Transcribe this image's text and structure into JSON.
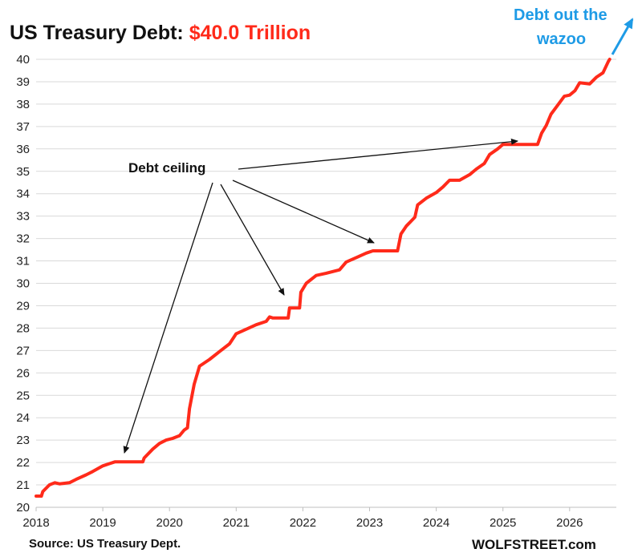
{
  "chart_data": {
    "type": "line",
    "title_prefix": "US Treasury Debt: ",
    "title_value": "$40.0 Trillion",
    "xlabel": "",
    "ylabel": "",
    "xlim": [
      2018.0,
      2026.7
    ],
    "ylim": [
      20,
      40
    ],
    "x_ticks": [
      "2018",
      "2019",
      "2020",
      "2021",
      "2022",
      "2023",
      "2024",
      "2025",
      "2026"
    ],
    "y_ticks": [
      20,
      21,
      22,
      23,
      24,
      25,
      26,
      27,
      28,
      29,
      30,
      31,
      32,
      33,
      34,
      35,
      36,
      37,
      38,
      39,
      40
    ],
    "grid": "horizontal",
    "series": [
      {
        "color": "#ff2a1a",
        "points": [
          [
            2018.0,
            20.5
          ],
          [
            2018.08,
            20.5
          ],
          [
            2018.1,
            20.7
          ],
          [
            2018.2,
            21.0
          ],
          [
            2018.28,
            21.1
          ],
          [
            2018.35,
            21.05
          ],
          [
            2018.5,
            21.1
          ],
          [
            2018.6,
            21.25
          ],
          [
            2018.75,
            21.45
          ],
          [
            2018.85,
            21.6
          ],
          [
            2019.0,
            21.85
          ],
          [
            2019.1,
            21.95
          ],
          [
            2019.18,
            22.03
          ],
          [
            2019.6,
            22.03
          ],
          [
            2019.62,
            22.2
          ],
          [
            2019.75,
            22.6
          ],
          [
            2019.85,
            22.85
          ],
          [
            2019.95,
            23.0
          ],
          [
            2020.05,
            23.08
          ],
          [
            2020.15,
            23.2
          ],
          [
            2020.22,
            23.45
          ],
          [
            2020.27,
            23.55
          ],
          [
            2020.3,
            24.4
          ],
          [
            2020.37,
            25.5
          ],
          [
            2020.45,
            26.3
          ],
          [
            2020.6,
            26.6
          ],
          [
            2020.75,
            26.95
          ],
          [
            2020.9,
            27.3
          ],
          [
            2021.0,
            27.75
          ],
          [
            2021.15,
            27.95
          ],
          [
            2021.3,
            28.15
          ],
          [
            2021.45,
            28.3
          ],
          [
            2021.5,
            28.5
          ],
          [
            2021.55,
            28.45
          ],
          [
            2021.78,
            28.45
          ],
          [
            2021.8,
            28.9
          ],
          [
            2021.95,
            28.9
          ],
          [
            2021.97,
            29.6
          ],
          [
            2022.05,
            30.0
          ],
          [
            2022.2,
            30.35
          ],
          [
            2022.35,
            30.45
          ],
          [
            2022.55,
            30.6
          ],
          [
            2022.65,
            30.95
          ],
          [
            2022.8,
            31.15
          ],
          [
            2022.95,
            31.35
          ],
          [
            2023.05,
            31.45
          ],
          [
            2023.42,
            31.45
          ],
          [
            2023.47,
            32.2
          ],
          [
            2023.55,
            32.55
          ],
          [
            2023.68,
            32.95
          ],
          [
            2023.72,
            33.5
          ],
          [
            2023.85,
            33.8
          ],
          [
            2024.0,
            34.05
          ],
          [
            2024.1,
            34.3
          ],
          [
            2024.2,
            34.6
          ],
          [
            2024.35,
            34.6
          ],
          [
            2024.5,
            34.85
          ],
          [
            2024.6,
            35.1
          ],
          [
            2024.72,
            35.35
          ],
          [
            2024.8,
            35.75
          ],
          [
            2024.92,
            36.0
          ],
          [
            2025.0,
            36.2
          ],
          [
            2025.1,
            36.2
          ],
          [
            2025.52,
            36.2
          ],
          [
            2025.58,
            36.7
          ],
          [
            2025.65,
            37.05
          ],
          [
            2025.72,
            37.55
          ],
          [
            2025.82,
            37.95
          ],
          [
            2025.92,
            38.35
          ],
          [
            2026.0,
            38.4
          ],
          [
            2026.08,
            38.6
          ],
          [
            2026.15,
            38.95
          ],
          [
            2026.3,
            38.9
          ],
          [
            2026.4,
            39.2
          ],
          [
            2026.5,
            39.4
          ],
          [
            2026.58,
            39.9
          ],
          [
            2026.6,
            40.0
          ]
        ]
      }
    ],
    "annotations": [
      {
        "text": "Debt ceiling",
        "color": "#111111"
      },
      {
        "text_lines": [
          "Debt out the",
          "wazoo"
        ],
        "color": "#1e9be6"
      }
    ],
    "source": "Source: US Treasury Dept.",
    "brand": "WOLFSTREET.com"
  }
}
